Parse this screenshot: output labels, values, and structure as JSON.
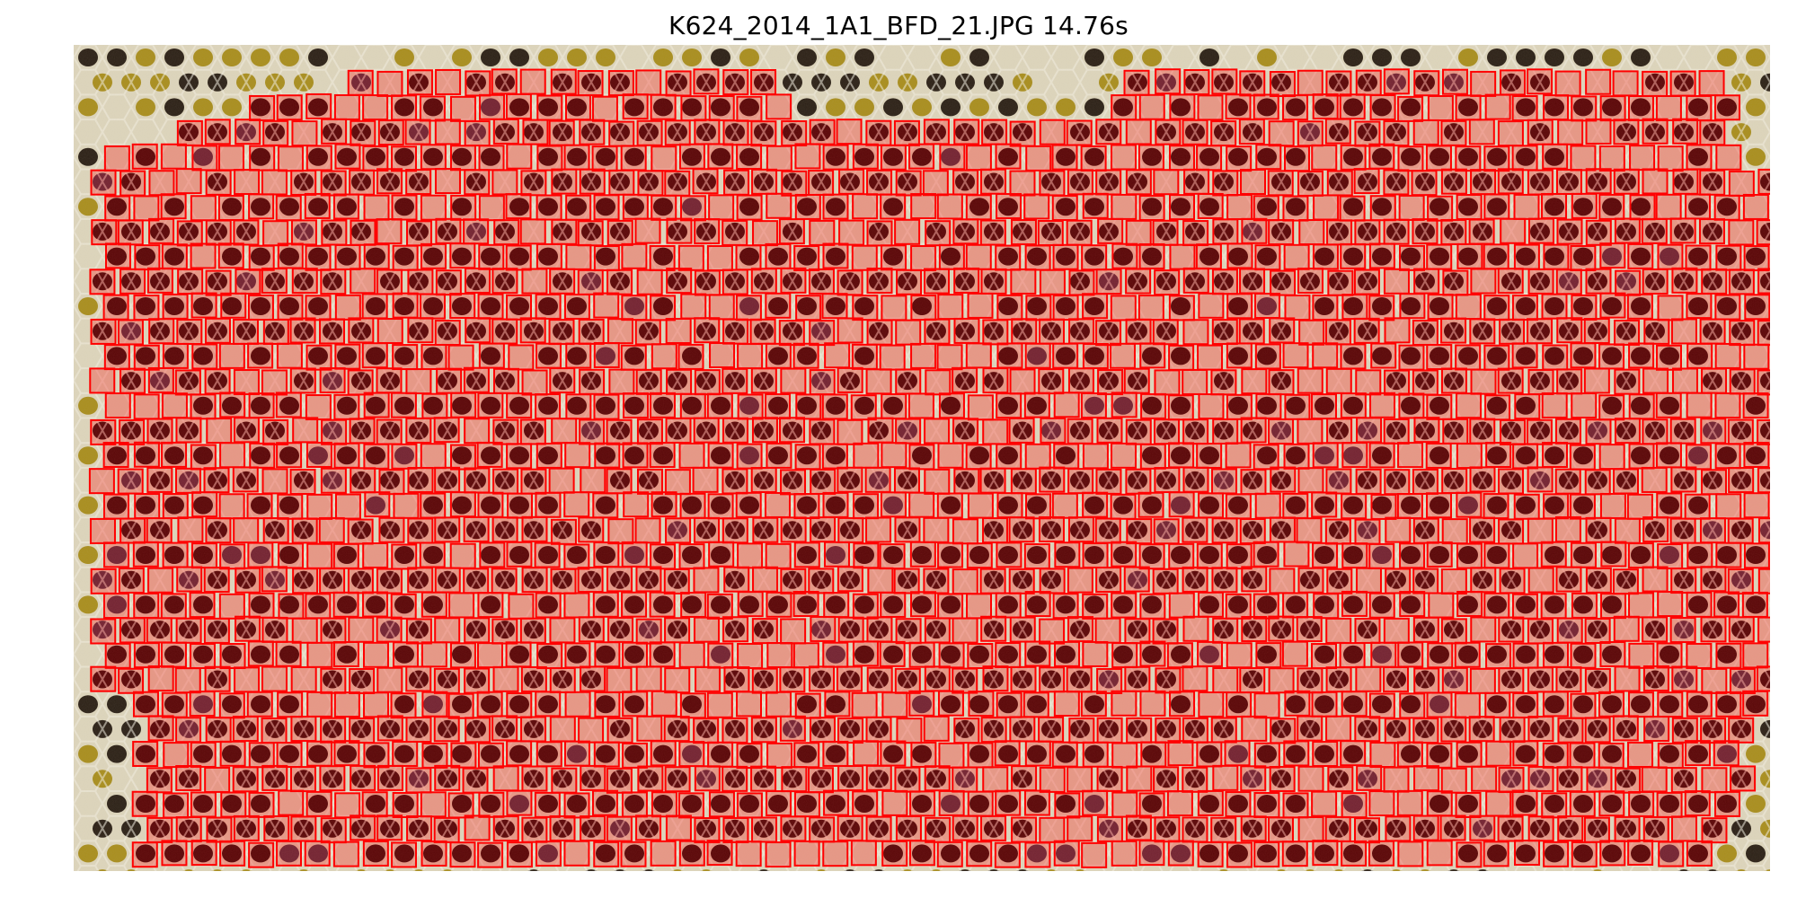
{
  "figure": {
    "title": "K624_2014_1A1_BFD_21.JPG 14.76s"
  },
  "image": {
    "subject": "honeycomb brood frame photograph with detected cells",
    "box_color": "#ff0000",
    "comb_color": "#ded6bd",
    "cell_dark_color": "#1a0a0c",
    "open_cell_color": "#a98e1d"
  }
}
